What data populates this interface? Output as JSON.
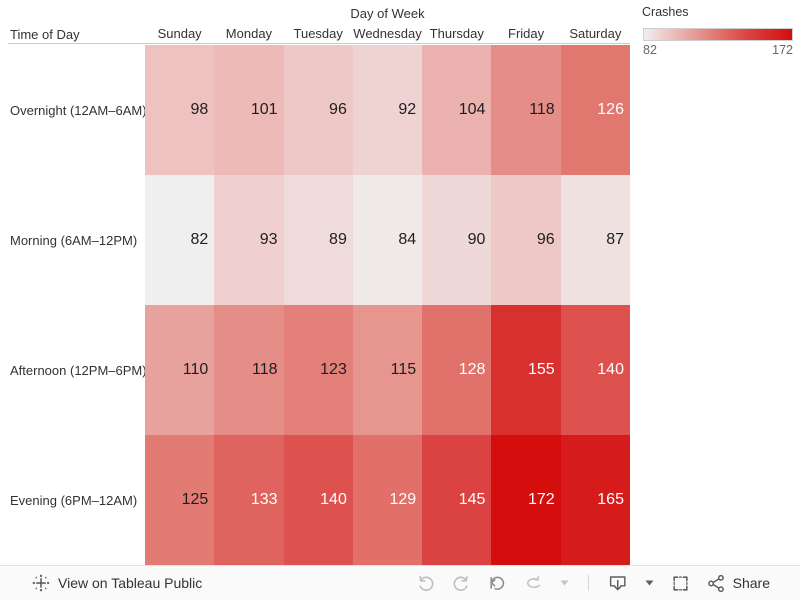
{
  "header": {
    "col_axis_title": "Day of Week",
    "row_axis_title": "Time of Day"
  },
  "legend": {
    "title": "Crashes",
    "min_label": "82",
    "max_label": "172"
  },
  "chart_data": {
    "type": "heatmap",
    "legend_title": "Crashes",
    "col_axis_title": "Day of Week",
    "row_axis_title": "Time of Day",
    "columns": [
      "Sunday",
      "Monday",
      "Tuesday",
      "Wednesday",
      "Thursday",
      "Friday",
      "Saturday"
    ],
    "rows": [
      "Overnight (12AM–6AM)",
      "Morning (6AM–12PM)",
      "Afternoon (12PM–6PM)",
      "Evening (6PM–12AM)"
    ],
    "values": [
      [
        98,
        101,
        96,
        92,
        104,
        118,
        126
      ],
      [
        82,
        93,
        89,
        84,
        90,
        96,
        87
      ],
      [
        110,
        118,
        123,
        115,
        128,
        155,
        140
      ],
      [
        125,
        133,
        140,
        129,
        145,
        172,
        165
      ]
    ],
    "color_scale": {
      "min": 82,
      "max": 172,
      "anchors": [
        {
          "value": 82,
          "color": "#F0EFEF"
        },
        {
          "value": 98,
          "color": "#EEC2C0"
        },
        {
          "value": 126,
          "color": "#E17870"
        },
        {
          "value": 145,
          "color": "#DB4343"
        },
        {
          "value": 172,
          "color": "#D40D0D"
        }
      ],
      "white_label_threshold": 126
    }
  },
  "toolbar": {
    "view_label": "View on Tableau Public",
    "share_label": "Share"
  },
  "colors": {
    "icon_dark": "#5f5f5f",
    "icon_medium": "#8f8f8f",
    "icon_light": "#bdbdbd",
    "legend_border": "#cfcfcf"
  }
}
